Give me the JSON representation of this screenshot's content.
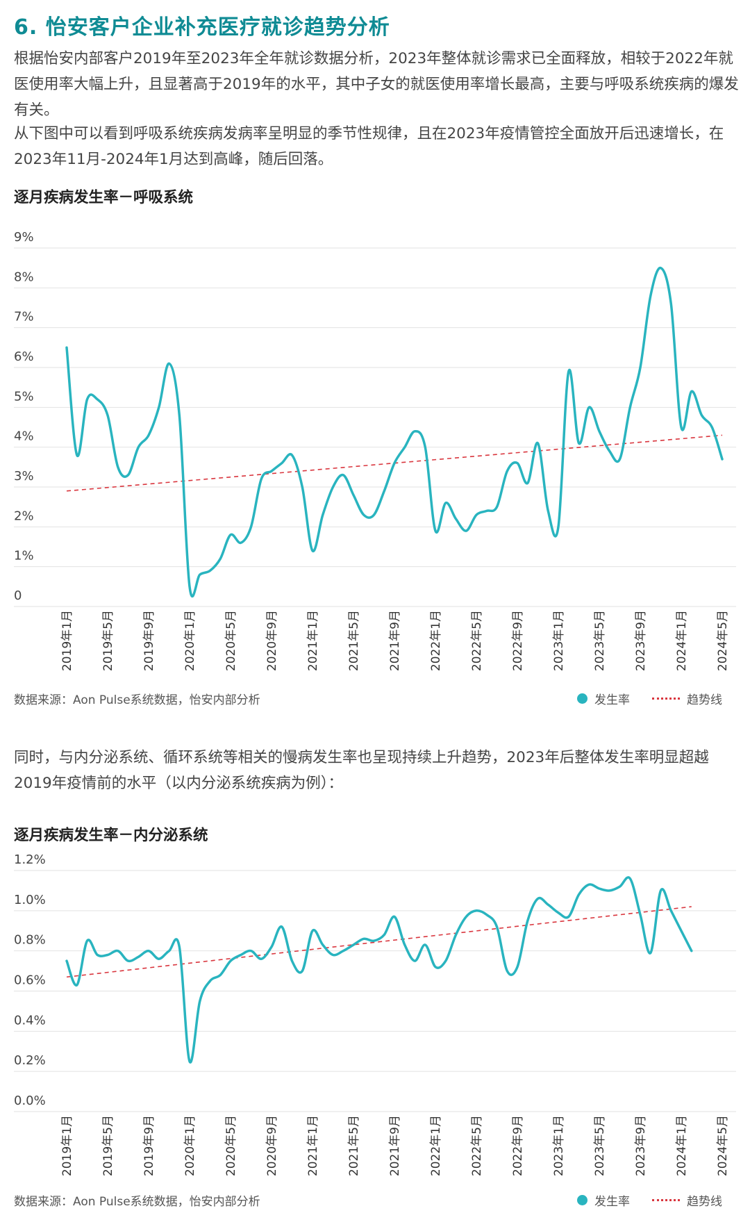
{
  "header": {
    "title": "6. 怡安客户企业补充医疗就诊趋势分析"
  },
  "paragraphs": {
    "p1": "根据怡安内部客户2019年至2023年全年就诊数据分析，2023年整体就诊需求已全面释放，相较于2022年就医使用率大幅上升，且显著高于2019年的水平，其中子女的就医使用率增长最高，主要与呼吸系统疾病的爆发有关。",
    "p2": "从下图中可以看到呼吸系统疾病发病率呈明显的季节性规律，且在2023年疫情管控全面放开后迅速增长，在2023年11月-2024年1月达到高峰，随后回落。",
    "p3": "同时，与内分泌系统、循环系统等相关的慢病发生率也呈现持续上升趋势，2023年后整体发生率明显超越2019年疫情前的水平（以内分泌系统疾病为例）："
  },
  "colors": {
    "line": "#29b4bf",
    "trend": "#d9363e",
    "grid": "#e2e2e2",
    "title": "#0f8b94"
  },
  "legend": {
    "series_label": "发生率",
    "trend_label": "趋势线"
  },
  "chart_data": [
    {
      "type": "line",
      "title": "逐月疾病发生率－呼吸系统",
      "source": "数据来源：Aon Pulse系统数据，怡安内部分析",
      "ylim": [
        0,
        9
      ],
      "yticks": [
        0,
        1,
        2,
        3,
        4,
        5,
        6,
        7,
        8,
        9
      ],
      "ytick_labels": [
        "0",
        "1%",
        "2%",
        "3%",
        "4%",
        "5%",
        "6%",
        "7%",
        "8%",
        "9%"
      ],
      "xtick_labels": [
        "2019年1月",
        "2019年5月",
        "2019年9月",
        "2020年1月",
        "2020年5月",
        "2020年9月",
        "2021年1月",
        "2021年5月",
        "2021年9月",
        "2022年1月",
        "2022年5月",
        "2022年9月",
        "2023年1月",
        "2023年5月",
        "2023年9月",
        "2024年1月",
        "2024年5月"
      ],
      "xtick_index": [
        0,
        4,
        8,
        12,
        16,
        20,
        24,
        28,
        32,
        36,
        40,
        44,
        48,
        52,
        56,
        60,
        64
      ],
      "series": [
        {
          "name": "发生率",
          "values": [
            6.5,
            3.8,
            5.2,
            5.2,
            4.8,
            3.5,
            3.3,
            4.0,
            4.3,
            5.0,
            6.1,
            4.8,
            0.5,
            0.8,
            0.9,
            1.2,
            1.8,
            1.6,
            2.0,
            3.2,
            3.4,
            3.6,
            3.8,
            3.0,
            1.4,
            2.3,
            3.0,
            3.3,
            2.8,
            2.3,
            2.3,
            2.9,
            3.6,
            4.0,
            4.4,
            4.0,
            1.9,
            2.6,
            2.2,
            1.9,
            2.3,
            2.4,
            2.5,
            3.4,
            3.6,
            3.1,
            4.1,
            2.4,
            2.0,
            5.9,
            4.1,
            5.0,
            4.4,
            3.9,
            3.7,
            5.0,
            6.0,
            7.8,
            8.5,
            7.6,
            4.5,
            5.4,
            4.8,
            4.5,
            3.7
          ],
          "trend": [
            2.9,
            4.3
          ]
        }
      ]
    },
    {
      "type": "line",
      "title": "逐月疾病发生率－内分泌系统",
      "source": "数据来源：Aon Pulse系统数据，怡安内部分析",
      "ylim": [
        0,
        1.2
      ],
      "yticks": [
        0,
        0.2,
        0.4,
        0.6,
        0.8,
        1.0,
        1.2
      ],
      "ytick_labels": [
        "0.0%",
        "0.2%",
        "0.4%",
        "0.6%",
        "0.8%",
        "1.0%",
        "1.2%"
      ],
      "xtick_labels": [
        "2019年1月",
        "2019年5月",
        "2019年9月",
        "2020年1月",
        "2020年5月",
        "2020年9月",
        "2021年1月",
        "2021年5月",
        "2021年9月",
        "2022年1月",
        "2022年5月",
        "2022年9月",
        "2023年1月",
        "2023年5月",
        "2023年9月",
        "2024年1月",
        "2024年5月"
      ],
      "xtick_index": [
        0,
        4,
        8,
        12,
        16,
        20,
        24,
        28,
        32,
        36,
        40,
        44,
        48,
        52,
        56,
        60,
        64
      ],
      "series": [
        {
          "name": "发生率",
          "values": [
            0.75,
            0.63,
            0.85,
            0.78,
            0.78,
            0.8,
            0.75,
            0.77,
            0.8,
            0.76,
            0.8,
            0.82,
            0.25,
            0.55,
            0.65,
            0.68,
            0.75,
            0.78,
            0.8,
            0.76,
            0.82,
            0.92,
            0.75,
            0.7,
            0.9,
            0.83,
            0.78,
            0.8,
            0.83,
            0.86,
            0.85,
            0.88,
            0.97,
            0.83,
            0.75,
            0.83,
            0.72,
            0.75,
            0.88,
            0.97,
            1.0,
            0.98,
            0.92,
            0.7,
            0.72,
            0.95,
            1.06,
            1.03,
            0.99,
            0.97,
            1.08,
            1.13,
            1.11,
            1.1,
            1.12,
            1.16,
            0.98,
            0.79,
            1.1,
            1.0,
            0.9,
            0.8
          ],
          "trend": [
            0.67,
            1.02
          ]
        }
      ]
    }
  ]
}
